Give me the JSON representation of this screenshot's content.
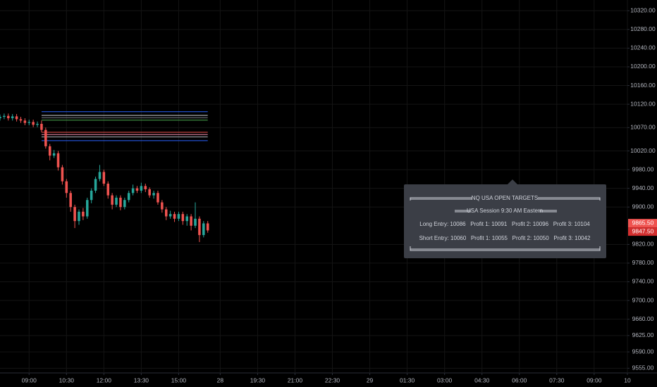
{
  "chart_data": {
    "type": "candlestick",
    "up_color": "#26a69a",
    "down_color": "#ef5350",
    "background": "#000000",
    "grid": true,
    "x": [
      -7,
      -6,
      -5,
      -4,
      -3,
      -2,
      -1,
      0,
      1,
      2,
      3,
      4,
      5,
      6,
      7,
      8,
      9,
      10,
      11,
      12,
      13,
      14,
      15,
      16,
      17,
      18,
      19,
      20,
      21,
      22,
      23,
      24,
      25,
      26,
      27,
      28,
      29,
      30,
      31,
      32,
      33,
      34,
      35,
      36,
      37,
      38,
      39,
      40,
      41,
      42,
      43
    ],
    "open": [
      10090,
      10093,
      10095,
      10090,
      10094,
      10088,
      10085,
      10080,
      10082,
      10076,
      10078,
      10065,
      10030,
      10010,
      10015,
      9985,
      9955,
      9930,
      9900,
      9870,
      9890,
      9880,
      9915,
      9935,
      9960,
      9975,
      9950,
      9925,
      9905,
      9920,
      9900,
      9915,
      9930,
      9940,
      9935,
      9945,
      9938,
      9925,
      9930,
      9910,
      9895,
      9880,
      9885,
      9875,
      9885,
      9870,
      9880,
      9860,
      9875,
      9840,
      9865
    ],
    "high": [
      10098,
      10100,
      10100,
      10099,
      10099,
      10093,
      10090,
      10087,
      10087,
      10083,
      10085,
      10070,
      10035,
      10022,
      10020,
      9990,
      9960,
      9935,
      9905,
      9895,
      9898,
      9920,
      9940,
      9965,
      9990,
      9980,
      9955,
      9930,
      9925,
      9925,
      9920,
      9935,
      9948,
      9945,
      9952,
      9950,
      9942,
      9935,
      9935,
      9915,
      9900,
      9892,
      9890,
      9890,
      9890,
      9885,
      9885,
      9910,
      9880,
      9870,
      9870
    ],
    "low": [
      10085,
      10088,
      10085,
      10085,
      10083,
      10080,
      10075,
      10075,
      10071,
      10071,
      10060,
      10025,
      10000,
      10005,
      9978,
      9948,
      9920,
      9890,
      9855,
      9862,
      9872,
      9875,
      9908,
      9930,
      9955,
      9945,
      9918,
      9895,
      9900,
      9893,
      9895,
      9910,
      9925,
      9930,
      9930,
      9932,
      9920,
      9918,
      9905,
      9888,
      9872,
      9875,
      9868,
      9870,
      9862,
      9860,
      9850,
      9855,
      9825,
      9835,
      9845
    ],
    "close": [
      10093,
      10095,
      10090,
      10094,
      10088,
      10085,
      10080,
      10082,
      10076,
      10078,
      10065,
      10030,
      10010,
      10015,
      9985,
      9955,
      9930,
      9900,
      9870,
      9890,
      9880,
      9915,
      9935,
      9960,
      9975,
      9950,
      9925,
      9905,
      9920,
      9900,
      9915,
      9930,
      9940,
      9935,
      9945,
      9938,
      9925,
      9930,
      9910,
      9895,
      9880,
      9885,
      9875,
      9885,
      9870,
      9880,
      9860,
      9875,
      9840,
      9865,
      9850
    ],
    "xlim": [
      -7,
      144
    ],
    "xticks": [
      {
        "value": 0,
        "label": "09:00"
      },
      {
        "value": 9,
        "label": "10:30"
      },
      {
        "value": 18,
        "label": "12:00"
      },
      {
        "value": 27,
        "label": "13:30"
      },
      {
        "value": 36,
        "label": "15:00"
      },
      {
        "value": 46,
        "label": "28"
      },
      {
        "value": 55,
        "label": "19:30"
      },
      {
        "value": 64,
        "label": "21:00"
      },
      {
        "value": 73,
        "label": "22:30"
      },
      {
        "value": 82,
        "label": "29"
      },
      {
        "value": 91,
        "label": "01:30"
      },
      {
        "value": 100,
        "label": "03:00"
      },
      {
        "value": 109,
        "label": "04:30"
      },
      {
        "value": 118,
        "label": "06:00"
      },
      {
        "value": 127,
        "label": "07:30"
      },
      {
        "value": 136,
        "label": "09:00"
      },
      {
        "value": 144,
        "label": "10"
      }
    ],
    "ylim": [
      9545,
      10343
    ],
    "yticks": [
      {
        "value": 10320,
        "label": "10320.00"
      },
      {
        "value": 10280,
        "label": "10280.00"
      },
      {
        "value": 10240,
        "label": "10240.00"
      },
      {
        "value": 10200,
        "label": "10200.00"
      },
      {
        "value": 10160,
        "label": "10160.00"
      },
      {
        "value": 10120,
        "label": "10120.00"
      },
      {
        "value": 10070,
        "label": "10070.00"
      },
      {
        "value": 10020,
        "label": "10020.00"
      },
      {
        "value": 9980,
        "label": "9980.00"
      },
      {
        "value": 9940,
        "label": "9940.00"
      },
      {
        "value": 9900,
        "label": "9900.00"
      },
      {
        "value": 9820,
        "label": "9820.00"
      },
      {
        "value": 9780,
        "label": "9780.00"
      },
      {
        "value": 9740,
        "label": "9740.00"
      },
      {
        "value": 9700,
        "label": "9700.00"
      },
      {
        "value": 9660,
        "label": "9660.00"
      },
      {
        "value": 9625,
        "label": "9625.00"
      },
      {
        "value": 9590,
        "label": "9590.00"
      },
      {
        "value": 9555,
        "label": "9555.00"
      }
    ],
    "levels": {
      "xlim": [
        3,
        43
      ],
      "values": [
        10104,
        10096,
        10091,
        10086,
        10060,
        10055,
        10050,
        10042
      ],
      "colors": [
        "#2962ff",
        "#d1d4dc",
        "#787b86",
        "#4caf50",
        "#ef5350",
        "#f48fb1",
        "#b2b5be",
        "#2962ff"
      ]
    },
    "price_labels": [
      {
        "value": 9865.5,
        "label": "9865.50",
        "color": "#ef5350"
      },
      {
        "value": 9847.5,
        "label": "9847.50",
        "color": "#d32f2f"
      }
    ],
    "annotation": {
      "title": "NQ USA OPEN TARGETS",
      "session": "USA Session 9:30 AM Eastern",
      "long": "Long Entry: 10086   Profit 1: 10091   Profit 2: 10096   Profit 3: 10104",
      "short": "Short Entry: 10060   Profit 1: 10055   Profit 2: 10050   Profit 3: 10042"
    }
  }
}
